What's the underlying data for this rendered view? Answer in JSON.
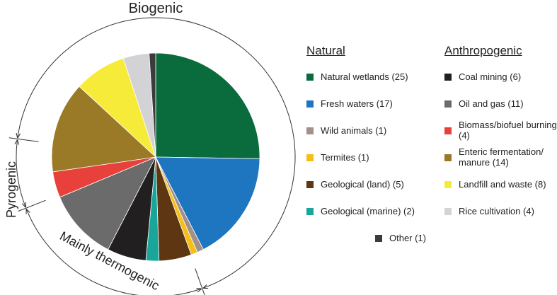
{
  "chart_data": {
    "type": "pie",
    "annotations": [
      "Biogenic",
      "Pyrogenic",
      "Mainly thermogenic"
    ],
    "legend_titles": [
      "Natural",
      "Anthropogenic"
    ],
    "categories": [
      "Natural wetlands (25)",
      "Fresh waters (17)",
      "Wild animals (1)",
      "Termites (1)",
      "Geological (land) (5)",
      "Geological (marine) (2)",
      "Coal mining (6)",
      "Oil and gas (11)",
      "Biomass/biofuel burning (4)",
      "Enteric fermentation/ manure (14)",
      "Landfill and waste (8)",
      "Rice cultivation (4)",
      "Other (1)"
    ],
    "values": [
      25,
      17,
      1,
      1,
      5,
      2,
      6,
      11,
      4,
      14,
      8,
      4,
      1
    ],
    "colors": [
      "#0a6b3d",
      "#1f76c0",
      "#a0928a",
      "#f6be1a",
      "#5e3712",
      "#1aa59b",
      "#221f20",
      "#6b6b6b",
      "#e8403a",
      "#9a7a26",
      "#f7eb3a",
      "#d3d3d5",
      "#3b3b3b"
    ]
  }
}
